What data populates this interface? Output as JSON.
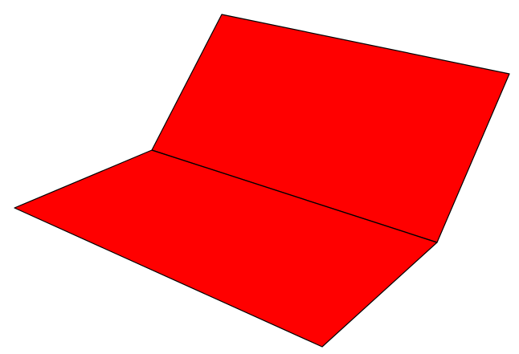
{
  "figure": {
    "fill_color": "#ff0000",
    "edge_color": "#000000",
    "background": "#ffffff",
    "shapes": [
      "back-panel",
      "front-panel",
      "fold-line"
    ]
  }
}
